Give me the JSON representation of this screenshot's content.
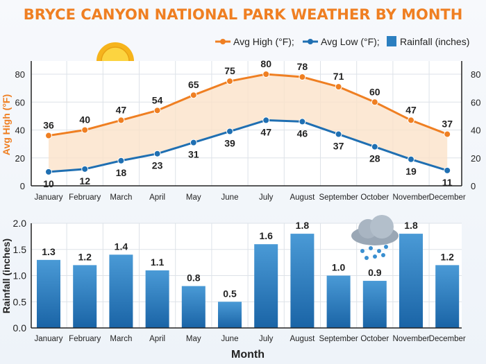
{
  "chart_data": [
    {
      "type": "line",
      "title": "BRYCE CANYON NATIONAL PARK WEATHER BY MONTH",
      "categories": [
        "January",
        "February",
        "March",
        "April",
        "May",
        "June",
        "July",
        "August",
        "September",
        "October",
        "November",
        "December"
      ],
      "series": [
        {
          "name": "Avg High (°F);",
          "color": "#ef7f22",
          "values": [
            36,
            40,
            47,
            54,
            65,
            75,
            80,
            78,
            71,
            60,
            47,
            37
          ]
        },
        {
          "name": "Avg Low (°F);",
          "color": "#1f6fb2",
          "values": [
            10,
            12,
            18,
            23,
            31,
            39,
            47,
            46,
            37,
            28,
            19,
            11
          ]
        }
      ],
      "ylabel": "Avg High (°F)",
      "ylim": [
        0,
        80
      ],
      "yticks": [
        "0",
        "20",
        "40",
        "60",
        "80"
      ],
      "grid": true,
      "legend": "top-right"
    },
    {
      "type": "bar",
      "categories": [
        "January",
        "February",
        "March",
        "April",
        "May",
        "June",
        "July",
        "August",
        "September",
        "October",
        "November",
        "December"
      ],
      "series": [
        {
          "name": "Rainfall (inches)",
          "color": "#2b7fc0",
          "values": [
            1.3,
            1.2,
            1.4,
            1.1,
            0.8,
            0.5,
            1.6,
            1.8,
            1.0,
            0.9,
            1.8,
            1.2
          ],
          "labels": [
            "1.3",
            "1.2",
            "1.4",
            "1.1",
            "0.8",
            "0.5",
            "1.6",
            "1.8",
            "1.0",
            "0.9",
            "1.8",
            "1.2"
          ]
        }
      ],
      "xlabel": "Month",
      "ylabel": "Rainfall (inches)",
      "ylim": [
        0,
        2.0
      ],
      "yticks": [
        "0.0",
        "0.5",
        "1.0",
        "1.5",
        "2.0"
      ],
      "grid": true
    }
  ],
  "icons": [
    "sun-icon",
    "rain-cloud-icon"
  ]
}
